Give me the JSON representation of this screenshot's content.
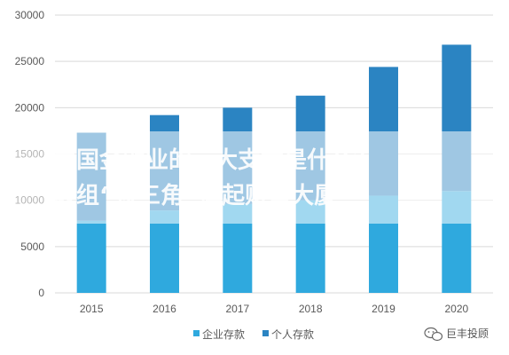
{
  "chart_data": {
    "type": "bar",
    "stacked": true,
    "categories": [
      "2015",
      "2016",
      "2017",
      "2018",
      "2019",
      "2020"
    ],
    "series": [
      {
        "name": "企业存款",
        "values": [
          7800,
          8900,
          9600,
          10000,
          10500,
          11000
        ],
        "color": "#2fa9de"
      },
      {
        "name": "个人存款",
        "values": [
          9500,
          10300,
          10400,
          11300,
          13900,
          15800
        ],
        "color": "#2b84c2"
      }
    ],
    "title": "",
    "xlabel": "",
    "ylabel": "",
    "ylim": [
      0,
      30000
    ],
    "yticks": [
      0,
      5000,
      10000,
      15000,
      20000,
      25000,
      30000
    ],
    "grid": true,
    "legend_position": "bottom"
  },
  "overlay": {
    "line1": "中国金融业的三大支柱是什么？",
    "line2": "改组“铁三角”撑起财富大厦",
    "band_color": "#ffffff"
  },
  "watermark": {
    "text": "巨丰投顾",
    "icon": "wechat-icon"
  }
}
